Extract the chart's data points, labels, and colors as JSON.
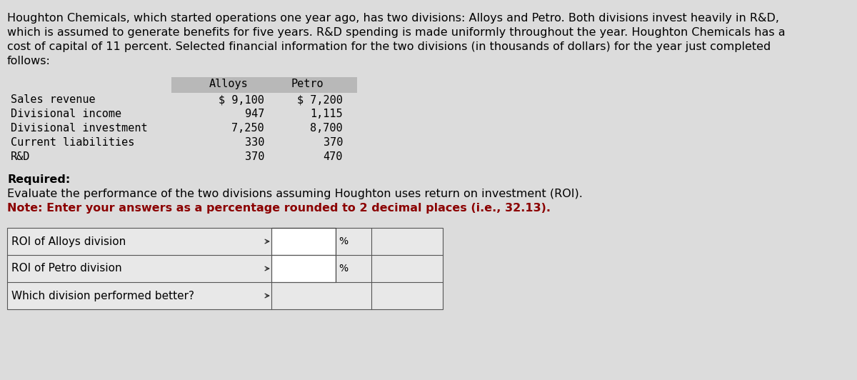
{
  "background_color": "#dcdcdc",
  "intro_lines": [
    "Houghton Chemicals, which started operations one year ago, has two divisions: Alloys and Petro. Both divisions invest heavily in R&D,",
    "which is assumed to generate benefits for five years. R&D spending is made uniformly throughout the year. Houghton Chemicals has a",
    "cost of capital of 11 percent. Selected financial information for the two divisions (in thousands of dollars) for the year just completed",
    "follows:"
  ],
  "table_header": [
    "Alloys",
    "Petro"
  ],
  "table_rows": [
    [
      "Sales revenue",
      "$ 9,100",
      "$ 7,200"
    ],
    [
      "Divisional income",
      "947",
      "1,115"
    ],
    [
      "Divisional investment",
      "7,250",
      "8,700"
    ],
    [
      "Current liabilities",
      "330",
      "370"
    ],
    [
      "R&D",
      "370",
      "470"
    ]
  ],
  "required_label": "Required:",
  "eval_text": "Evaluate the performance of the two divisions assuming Houghton uses return on investment (ROI).",
  "note_text": "Note: Enter your answers as a percentage rounded to 2 decimal places (i.e., 32.13).",
  "answer_rows": [
    [
      "ROI of Alloys division",
      "%"
    ],
    [
      "ROI of Petro division",
      "%"
    ],
    [
      "Which division performed better?",
      ""
    ]
  ],
  "text_color": "#000000",
  "note_color": "#8b0000",
  "header_bg": "#b8b8b8",
  "table_bg": "#dcdcdc",
  "answer_bg": "#e8e8e8",
  "input_bg": "#ffffff"
}
